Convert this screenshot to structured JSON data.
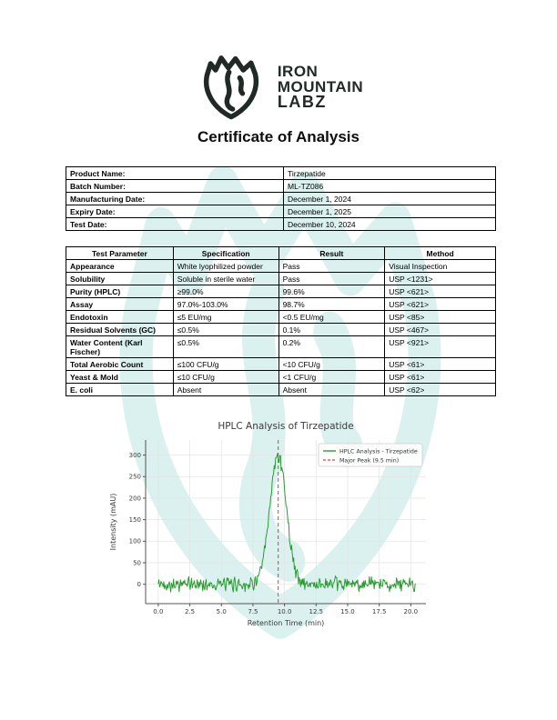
{
  "page": {
    "title": "Certificate of Analysis"
  },
  "brand": {
    "line1": "IRON",
    "line2": "MOUNTAIN",
    "line3": "LABZ",
    "logo_icon": "mountain-shield-icon",
    "logo_color": "#212927",
    "watermark_color": "#bfe6e2"
  },
  "product_info": {
    "rows": [
      {
        "label": "Product Name:",
        "value": "Tirzepatide"
      },
      {
        "label": "Batch Number:",
        "value": "ML-TZ086"
      },
      {
        "label": "Manufacturing Date:",
        "value": "December 1, 2024"
      },
      {
        "label": "Expiry Date:",
        "value": "December 1, 2025"
      },
      {
        "label": "Test Date:",
        "value": "December 10, 2024"
      }
    ]
  },
  "results_table": {
    "columns": [
      "Test Parameter",
      "Specification",
      "Result",
      "Method"
    ],
    "rows": [
      [
        "Appearance",
        "White lyophilized powder",
        "Pass",
        "Visual Inspection"
      ],
      [
        "Solubility",
        "Soluble in sterile water",
        "Pass",
        "USP <1231>"
      ],
      [
        "Purity (HPLC)",
        "≥99.0%",
        "99.6%",
        "USP <621>"
      ],
      [
        "Assay",
        "97.0%-103.0%",
        "98.7%",
        "USP <621>"
      ],
      [
        "Endotoxin",
        "≤5 EU/mg",
        "<0.5 EU/mg",
        "USP <85>"
      ],
      [
        "Residual Solvents (GC)",
        "≤0.5%",
        "0.1%",
        "USP <467>"
      ],
      [
        "Water Content (Karl Fischer)",
        "≤0.5%",
        "0.2%",
        "USP <921>"
      ],
      [
        "Total Aerobic Count",
        "≤100 CFU/g",
        "<10 CFU/g",
        "USP <61>"
      ],
      [
        "Yeast & Mold",
        "≤10 CFU/g",
        "<1 CFU/g",
        "USP <61>"
      ],
      [
        "E. coli",
        "Absent",
        "Absent",
        "USP <62>"
      ]
    ]
  },
  "chart_data": {
    "type": "line",
    "title": "HPLC Analysis of Tirzepatide",
    "xlabel": "Retention Time (min)",
    "ylabel": "Intensity (mAU)",
    "xlim": [
      -1,
      21.2
    ],
    "ylim": [
      -45,
      335
    ],
    "x_ticks": [
      0.0,
      2.5,
      5.0,
      7.5,
      10.0,
      12.5,
      15.0,
      17.5,
      20.0
    ],
    "y_ticks": [
      0,
      50,
      100,
      150,
      200,
      250,
      300
    ],
    "grid": true,
    "legend_position": "upper right",
    "series": [
      {
        "name": "HPLC Analysis - Tirzepatide",
        "color": "#2a9d32",
        "model": {
          "description": "flat noisy baseline at 0 mAU with single Gaussian peak",
          "baseline": 0,
          "noise_amplitude": 20,
          "peak_center": 9.5,
          "peak_height": 300,
          "peak_sigma": 0.65,
          "x_start": 0,
          "x_end": 20.4,
          "x_step": 0.055,
          "seed": 42
        }
      }
    ],
    "markers": [
      {
        "type": "vline",
        "x": 9.5,
        "label": "Major Peak (9.5 min)",
        "color": "#d94040",
        "style": "dashed"
      }
    ]
  }
}
